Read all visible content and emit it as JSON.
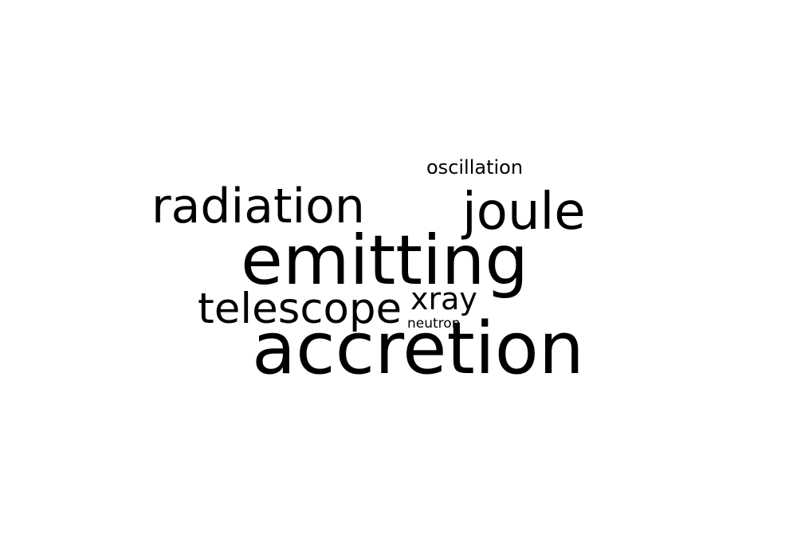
{
  "word_cloud": {
    "background_color": "#ffffff",
    "text_color": "#000000",
    "words": [
      {
        "key": "oscillation",
        "text": "oscillation"
      },
      {
        "key": "radiation",
        "text": "radiation"
      },
      {
        "key": "joule",
        "text": "joule"
      },
      {
        "key": "emitting",
        "text": "emitting"
      },
      {
        "key": "xray",
        "text": "xray"
      },
      {
        "key": "telescope",
        "text": "telescope"
      },
      {
        "key": "neutron",
        "text": "neutron"
      },
      {
        "key": "accretion",
        "text": "accretion"
      }
    ]
  }
}
